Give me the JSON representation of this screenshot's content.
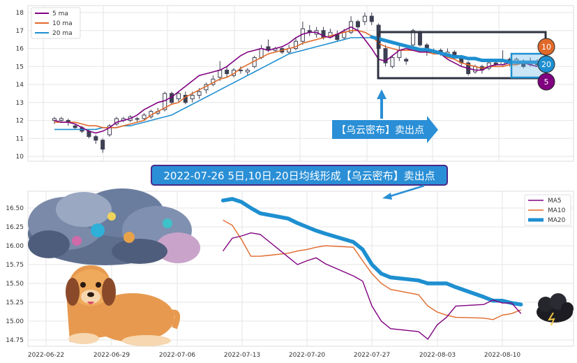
{
  "colors": {
    "ma5": "#800080",
    "ma10": "#e0692a",
    "ma20": "#1e8fd0",
    "candle": "#3d3f52",
    "box": "#2f3342",
    "banner_bg": "#2a8fd6",
    "banner_border": "#4a2a8a"
  },
  "annotation": {
    "arrow_label": "【乌云密布】卖出点",
    "banner": "2022-07-26 5日,10日,20日均线形成【乌云密布】卖出点"
  },
  "badges": {
    "ma10": "10",
    "ma20": "20",
    "ma5": "5"
  },
  "icons": {
    "cloud": "storm-cloud-illustration",
    "dog": "sitting-dog-illustration",
    "dark_cloud": "dark-cloud-icon"
  },
  "chart_data": [
    {
      "type": "candlestick",
      "ylim": [
        9.8,
        18.3
      ],
      "yticks": [
        "10",
        "11",
        "12",
        "13",
        "14",
        "15",
        "16",
        "17",
        "18"
      ],
      "legend": [
        "5 ma",
        "10 ma",
        "20 ma"
      ],
      "legend_position": "top-left",
      "grid": true,
      "ma5": [
        12.0,
        11.9,
        11.9,
        11.8,
        11.6,
        11.4,
        11.3,
        11.4,
        11.6,
        11.9,
        12.0,
        12.1,
        12.3,
        12.6,
        12.8,
        13.0,
        13.1,
        13.3,
        13.6,
        13.9,
        14.2,
        14.5,
        14.6,
        14.7,
        14.8,
        15.0,
        15.3,
        15.6,
        15.8,
        15.9,
        16.0,
        15.9,
        16.0,
        16.1,
        16.3,
        16.6,
        16.8,
        16.9,
        16.9,
        16.7,
        16.6,
        16.8,
        17.0,
        17.2,
        17.0,
        16.5,
        16.0,
        15.4,
        15.3,
        15.6,
        15.9,
        16.0,
        15.9,
        15.8,
        15.8,
        15.8,
        15.7,
        15.4,
        15.2,
        15.0,
        14.9,
        14.8,
        14.8,
        15.0,
        15.1,
        15.1,
        15.2,
        15.2,
        15.2,
        15.1,
        15.0
      ],
      "ma10": [
        11.9,
        11.9,
        11.9,
        11.9,
        11.8,
        11.7,
        11.7,
        11.6,
        11.6,
        11.6,
        11.7,
        11.8,
        11.9,
        12.0,
        12.3,
        12.5,
        12.7,
        12.9,
        13.0,
        13.3,
        13.5,
        13.7,
        13.9,
        14.1,
        14.3,
        14.4,
        14.6,
        14.9,
        15.1,
        15.3,
        15.5,
        15.7,
        15.8,
        15.9,
        16.0,
        16.1,
        16.3,
        16.4,
        16.5,
        16.6,
        16.7,
        16.8,
        16.9,
        17.0,
        17.0,
        16.9,
        16.7,
        16.3,
        16.1,
        16.0,
        15.9,
        15.9,
        15.9,
        15.8,
        15.8,
        15.7,
        15.7,
        15.5,
        15.4,
        15.2,
        15.1,
        15.0,
        14.9,
        15.0,
        15.0,
        15.0,
        15.1,
        15.1,
        15.2,
        15.2,
        15.2
      ],
      "ma20": [
        11.5,
        11.5,
        11.5,
        11.5,
        11.5,
        11.5,
        11.5,
        11.6,
        11.6,
        11.6,
        11.7,
        11.7,
        11.8,
        11.9,
        12.0,
        12.1,
        12.2,
        12.3,
        12.5,
        12.7,
        12.9,
        13.1,
        13.3,
        13.5,
        13.7,
        13.9,
        14.1,
        14.3,
        14.5,
        14.7,
        14.9,
        15.1,
        15.3,
        15.5,
        15.7,
        15.8,
        15.9,
        16.0,
        16.1,
        16.2,
        16.3,
        16.4,
        16.5,
        16.6,
        16.6,
        16.6,
        16.6,
        16.5,
        16.4,
        16.3,
        16.2,
        16.1,
        16.0,
        15.9,
        15.9,
        15.8,
        15.7,
        15.6,
        15.5,
        15.5,
        15.4,
        15.4,
        15.3,
        15.3,
        15.3,
        15.3,
        15.2,
        15.2,
        15.2,
        15.2,
        15.2
      ],
      "candles": [
        [
          12.0,
          12.1,
          11.8,
          12.2
        ],
        [
          12.0,
          12.1,
          11.9,
          12.2
        ],
        [
          12.0,
          11.9,
          11.7,
          12.1
        ],
        [
          11.7,
          11.6,
          11.5,
          11.8
        ],
        [
          11.6,
          11.4,
          11.3,
          11.7
        ],
        [
          11.4,
          11.1,
          11.0,
          11.5
        ],
        [
          11.1,
          10.9,
          10.7,
          11.2
        ],
        [
          10.9,
          10.4,
          10.2,
          11.0
        ],
        [
          11.2,
          11.7,
          11.1,
          11.8
        ],
        [
          11.8,
          12.1,
          11.7,
          12.2
        ],
        [
          12.0,
          12.1,
          11.9,
          12.2
        ],
        [
          12.0,
          12.2,
          11.9,
          12.3
        ],
        [
          12.1,
          12.1,
          11.9,
          12.2
        ],
        [
          12.1,
          12.3,
          12.0,
          12.4
        ],
        [
          12.2,
          12.5,
          12.1,
          12.6
        ],
        [
          12.4,
          12.5,
          12.3,
          12.7
        ],
        [
          12.6,
          13.5,
          12.5,
          13.6
        ],
        [
          13.5,
          13.0,
          12.9,
          13.6
        ],
        [
          13.2,
          13.5,
          13.0,
          13.6
        ],
        [
          13.4,
          13.0,
          12.9,
          13.6
        ],
        [
          13.2,
          13.4,
          13.0,
          13.6
        ],
        [
          13.4,
          13.6,
          13.2,
          13.8
        ],
        [
          13.7,
          14.0,
          13.5,
          14.1
        ],
        [
          14.0,
          14.3,
          13.9,
          14.5
        ],
        [
          14.4,
          14.8,
          14.2,
          15.3
        ],
        [
          14.8,
          14.6,
          14.4,
          15.0
        ],
        [
          14.5,
          14.8,
          14.4,
          14.9
        ],
        [
          14.8,
          14.8,
          14.6,
          15.0
        ],
        [
          14.7,
          14.8,
          14.5,
          14.9
        ],
        [
          15.0,
          15.5,
          14.9,
          15.6
        ],
        [
          15.5,
          16.0,
          15.4,
          16.2
        ],
        [
          16.1,
          15.9,
          15.8,
          16.5
        ],
        [
          15.9,
          16.0,
          15.8,
          16.1
        ],
        [
          16.0,
          15.8,
          15.7,
          16.1
        ],
        [
          15.8,
          16.0,
          15.7,
          16.2
        ],
        [
          16.0,
          16.4,
          15.9,
          16.6
        ],
        [
          16.4,
          17.1,
          16.2,
          17.5
        ],
        [
          17.0,
          16.9,
          16.7,
          17.3
        ],
        [
          16.8,
          17.0,
          16.6,
          17.2
        ],
        [
          17.0,
          16.6,
          16.5,
          17.2
        ],
        [
          16.7,
          16.9,
          16.6,
          17.1
        ],
        [
          16.8,
          16.5,
          16.4,
          17.0
        ],
        [
          16.6,
          16.9,
          16.5,
          17.1
        ],
        [
          16.9,
          17.5,
          16.8,
          17.8
        ],
        [
          17.5,
          17.2,
          17.0,
          17.6
        ],
        [
          17.5,
          17.8,
          17.3,
          18.0
        ],
        [
          17.8,
          17.5,
          17.3,
          18.0
        ],
        [
          17.3,
          16.0,
          15.9,
          17.4
        ],
        [
          16.0,
          15.2,
          15.0,
          16.2
        ],
        [
          15.0,
          15.5,
          14.9,
          15.6
        ],
        [
          15.5,
          15.9,
          15.3,
          16.2
        ],
        [
          15.4,
          15.3,
          15.1,
          15.5
        ],
        [
          16.2,
          17.0,
          16.1,
          17.1
        ],
        [
          16.9,
          16.2,
          16.1,
          17.0
        ],
        [
          16.2,
          15.8,
          15.6,
          16.3
        ],
        [
          15.8,
          15.9,
          15.7,
          16.0
        ],
        [
          15.9,
          15.8,
          15.6,
          16.0
        ],
        [
          15.6,
          15.8,
          15.5,
          16.0
        ],
        [
          15.8,
          15.6,
          15.4,
          15.9
        ],
        [
          15.5,
          15.2,
          15.0,
          15.6
        ],
        [
          15.2,
          14.6,
          14.5,
          15.3
        ],
        [
          14.7,
          15.0,
          14.6,
          15.1
        ],
        [
          15.0,
          14.8,
          14.6,
          15.1
        ],
        [
          14.9,
          15.2,
          14.8,
          15.3
        ],
        [
          15.2,
          15.1,
          15.0,
          15.4
        ],
        [
          15.1,
          15.3,
          15.0,
          15.9
        ],
        [
          15.4,
          15.2,
          15.0,
          15.5
        ],
        [
          15.2,
          15.4,
          15.1,
          15.5
        ],
        [
          15.3,
          15.0,
          14.9,
          15.4
        ],
        [
          15.1,
          15.3,
          15.0,
          15.5
        ],
        [
          15.2,
          15.1,
          15.0,
          15.4
        ]
      ]
    },
    {
      "type": "line",
      "x": [
        "2022-07-11",
        "2022-07-12",
        "2022-07-13",
        "2022-07-14",
        "2022-07-15",
        "2022-07-18",
        "2022-07-19",
        "2022-07-20",
        "2022-07-21",
        "2022-07-22",
        "2022-07-25",
        "2022-07-26",
        "2022-07-27",
        "2022-07-28",
        "2022-07-29",
        "2022-08-01",
        "2022-08-02",
        "2022-08-03",
        "2022-08-04",
        "2022-08-05",
        "2022-08-08",
        "2022-08-09",
        "2022-08-10",
        "2022-08-11",
        "2022-08-12"
      ],
      "xticks": [
        "2022-06-22",
        "2022-06-29",
        "2022-07-06",
        "2022-07-13",
        "2022-07-20",
        "2022-07-27",
        "2022-08-03",
        "2022-08-10"
      ],
      "ylim": [
        14.67,
        16.67
      ],
      "yticks": [
        "14.75",
        "15.00",
        "15.25",
        "15.50",
        "15.75",
        "16.00",
        "16.25",
        "16.50"
      ],
      "legend_position": "top-right",
      "grid": true,
      "series": [
        {
          "name": "MA5",
          "values": [
            15.93,
            16.1,
            16.13,
            16.17,
            16.15,
            15.85,
            15.75,
            15.8,
            15.84,
            15.76,
            15.6,
            15.53,
            15.2,
            15.0,
            14.9,
            14.86,
            14.76,
            14.95,
            15.05,
            15.2,
            15.22,
            15.28,
            15.24,
            15.24,
            15.1
          ]
        },
        {
          "name": "MA10",
          "values": [
            16.34,
            16.27,
            16.08,
            15.86,
            15.86,
            15.9,
            15.93,
            15.95,
            15.98,
            16.0,
            15.98,
            15.8,
            15.63,
            15.5,
            15.42,
            15.35,
            15.2,
            15.12,
            15.08,
            15.05,
            15.04,
            15.02,
            15.08,
            15.1,
            15.15
          ]
        },
        {
          "name": "MA20",
          "values": [
            16.6,
            16.62,
            16.58,
            16.5,
            16.43,
            16.36,
            16.3,
            16.25,
            16.2,
            16.16,
            16.05,
            15.95,
            15.75,
            15.63,
            15.58,
            15.54,
            15.5,
            15.5,
            15.5,
            15.45,
            15.32,
            15.27,
            15.27,
            15.24,
            15.22
          ]
        }
      ]
    }
  ]
}
